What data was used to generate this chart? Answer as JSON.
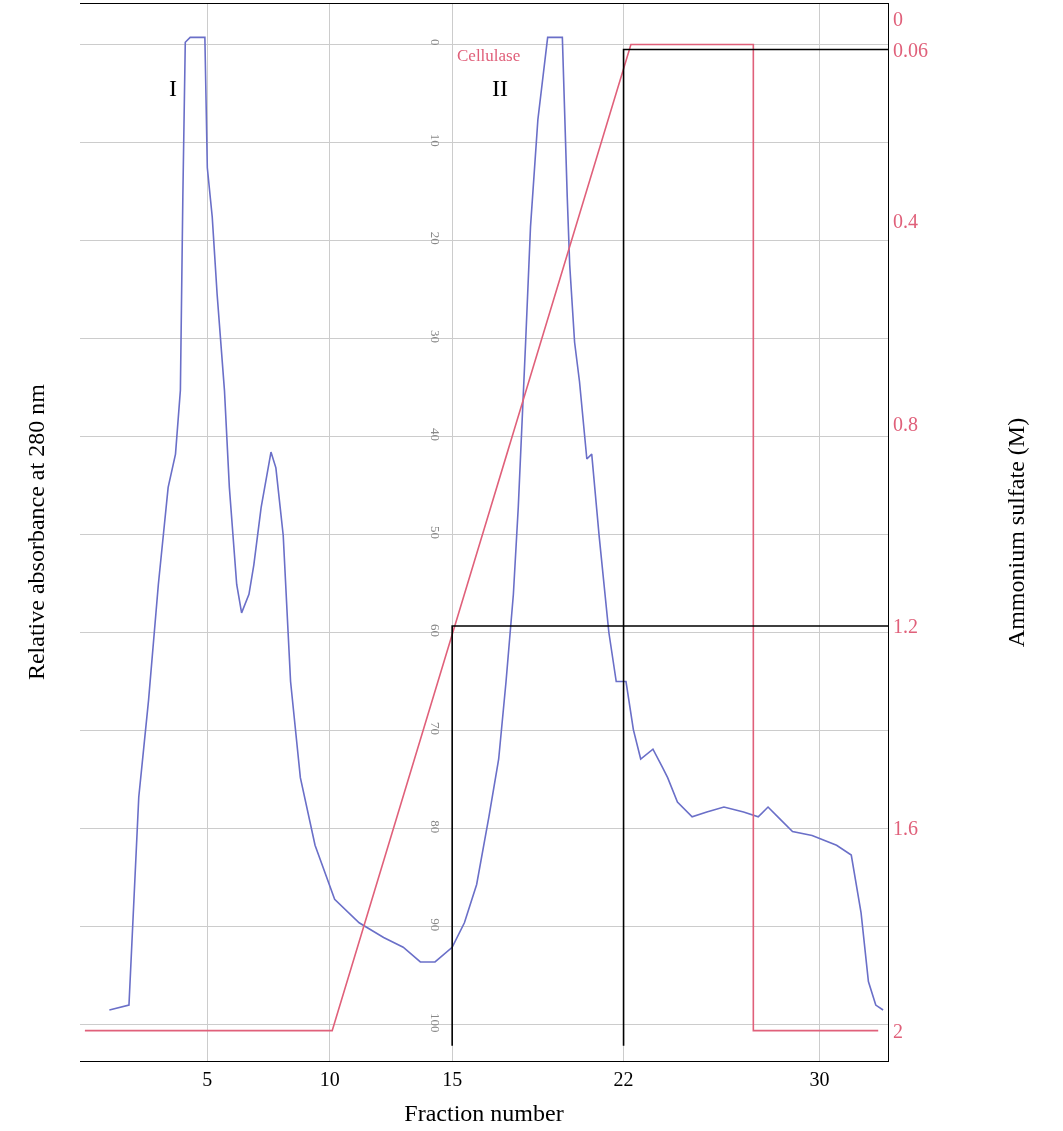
{
  "chart_data": {
    "type": "line",
    "xlabel": "Fraction number",
    "ylabel": "Relative absorbance at 280 nm",
    "y2label": "Ammonium sulfate (M)",
    "xlim": [
      -0.2,
      32.8
    ],
    "xticks": [
      5,
      10,
      15,
      22,
      30
    ],
    "ylim": [
      103.7,
      -4.1
    ],
    "yticks": [
      0,
      10,
      20,
      30,
      40,
      50,
      60,
      70,
      80,
      90,
      100
    ],
    "y2lim": [
      2.06,
      -0.03
    ],
    "y2ticks": [
      0,
      0.06,
      0.4,
      0.8,
      1.2,
      1.6,
      2
    ],
    "grid": true,
    "marker": "none",
    "line_style": "solid",
    "annotations": [
      "I",
      "II",
      "Cellulase"
    ],
    "series": [
      {
        "color": "#6a6fc8",
        "x": [
          1.0,
          1.8,
          2.2,
          2.6,
          3.0,
          3.4,
          3.7,
          3.9,
          4.0,
          4.1,
          4.3,
          4.9,
          5.0,
          5.2,
          5.4,
          5.7,
          5.9,
          6.2,
          6.4,
          6.7,
          6.9,
          7.2,
          7.6,
          7.8,
          8.1,
          8.4,
          8.8,
          9.4,
          10.2,
          11.2,
          12.2,
          13.0,
          13.7,
          14.3,
          15.0,
          15.5,
          16.0,
          16.5,
          16.9,
          17.2,
          17.5,
          17.7,
          18.0,
          18.2,
          18.5,
          18.9,
          19.5,
          19.7,
          19.8,
          20.0,
          20.2,
          20.5,
          20.7,
          21.0,
          21.4,
          21.7,
          22.1,
          22.4,
          22.7,
          23.2,
          23.6,
          23.8,
          24.2,
          24.8,
          25.4,
          26.1,
          26.9,
          27.5,
          27.9,
          28.3,
          28.9,
          29.7,
          30.7,
          31.3,
          31.7,
          32.0,
          32.3,
          32.6
        ],
        "values": [
          98.5,
          98.0,
          76.8,
          66.9,
          55.1,
          45.2,
          41.8,
          35.3,
          15.6,
          -0.2,
          -0.7,
          -0.7,
          12.6,
          17.6,
          25.5,
          35.3,
          45.2,
          55.1,
          58.0,
          56.1,
          53.1,
          47.2,
          41.6,
          43.2,
          50.1,
          65.0,
          74.8,
          81.7,
          87.2,
          89.6,
          91.1,
          92.1,
          93.6,
          93.6,
          92.1,
          89.6,
          85.7,
          78.8,
          72.9,
          65.0,
          56.1,
          47.2,
          30.4,
          18.6,
          7.7,
          -0.7,
          -0.7,
          15.6,
          22.5,
          30.4,
          34.4,
          42.3,
          41.8,
          50.1,
          60.0,
          65.0,
          65.0,
          69.9,
          72.9,
          71.9,
          73.8,
          74.8,
          77.3,
          78.8,
          78.3,
          77.8,
          78.3,
          78.8,
          77.8,
          78.8,
          80.3,
          80.7,
          81.7,
          82.7,
          88.6,
          95.6,
          98.0,
          98.5
        ]
      },
      {
        "color": "#e0607a",
        "axis": "y2",
        "x": [
          0,
          10.1,
          22.3,
          27.3,
          27.3,
          32.4
        ],
        "values": [
          2,
          2,
          0.05,
          0.05,
          2,
          2
        ]
      },
      {
        "color": "#000000",
        "axis": "y2",
        "x": [
          15,
          15,
          32.8
        ],
        "values": [
          2.03,
          1.2,
          1.2
        ]
      },
      {
        "color": "#000000",
        "axis": "y2",
        "x": [
          22,
          22,
          32.8
        ],
        "values": [
          2.03,
          0.06,
          0.06
        ]
      }
    ]
  }
}
